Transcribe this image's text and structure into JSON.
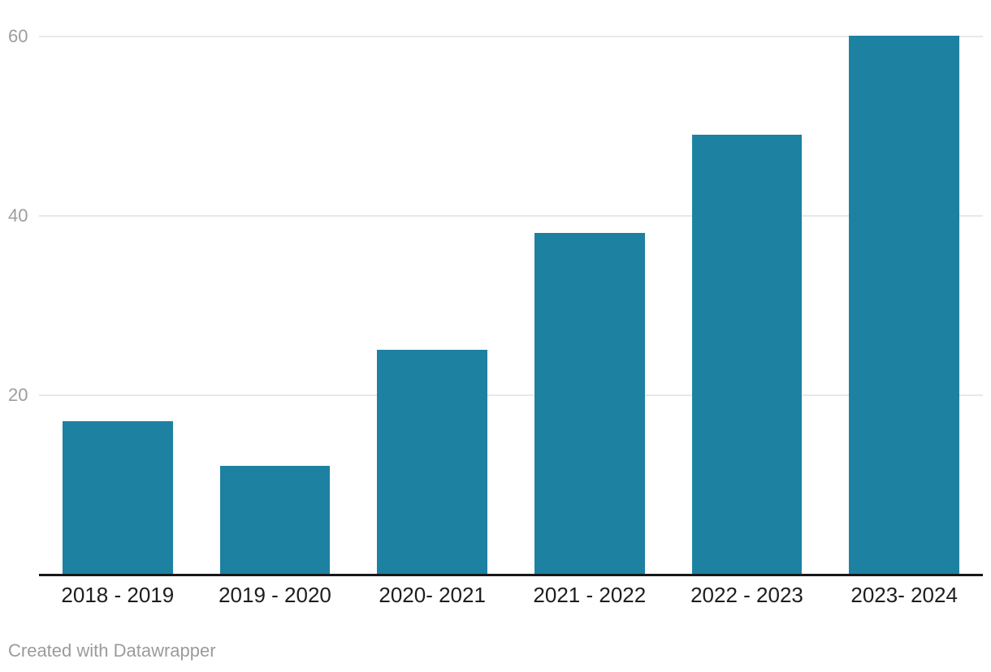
{
  "chart_data": {
    "type": "bar",
    "categories": [
      "2018 - 2019",
      "2019 - 2020",
      "2020- 2021",
      "2021 - 2022",
      "2022 - 2023",
      "2023- 2024"
    ],
    "values": [
      17,
      12,
      25,
      38,
      49,
      60
    ],
    "title": "",
    "xlabel": "",
    "ylabel": "",
    "ylim": [
      0,
      60
    ],
    "yticks": [
      20,
      40,
      60
    ],
    "grid": true,
    "legend": "none",
    "colors": {
      "bar": "#1d81a2",
      "gridline": "#e8e8e8",
      "axis_line": "#18181a",
      "ytick_text": "#9d9d9d",
      "xtick_text": "#1d1d1d",
      "footer_text": "#9b9b9b"
    }
  },
  "footer": {
    "attribution": "Created with Datawrapper"
  }
}
